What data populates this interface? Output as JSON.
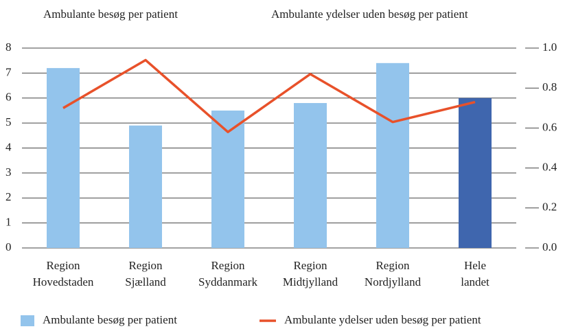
{
  "chart_data": {
    "type": "bar-line",
    "ylabel": "Ambulante besøg per patient",
    "y2label": "Ambulante ydelser uden besøg per patient",
    "categories": [
      [
        "Region",
        "Hovedstaden"
      ],
      [
        "Region",
        "Sjælland"
      ],
      [
        "Region",
        "Syddanmark"
      ],
      [
        "Region",
        "Midtjylland"
      ],
      [
        "Region",
        "Nordjylland"
      ],
      [
        "Hele",
        "landet"
      ]
    ],
    "series": [
      {
        "name": "Ambulante besøg per patient",
        "type": "bar",
        "color": "#93c4ec",
        "colors": [
          "#93c4ec",
          "#93c4ec",
          "#93c4ec",
          "#93c4ec",
          "#93c4ec",
          "#3f66ae"
        ],
        "values": [
          7.2,
          4.9,
          5.5,
          5.8,
          7.4,
          6.0
        ]
      },
      {
        "name": "Ambulante ydelser uden besøg per patient",
        "type": "line",
        "axis": "y2",
        "color": "#e8512a",
        "values": [
          0.7,
          0.94,
          0.58,
          0.87,
          0.63,
          0.73
        ]
      }
    ],
    "ylim": [
      0,
      8
    ],
    "yticks": [
      0,
      1,
      2,
      3,
      4,
      5,
      6,
      7,
      8
    ],
    "y2lim": [
      0,
      1
    ],
    "y2ticks": [
      {
        "value": 0,
        "label": "0.0"
      },
      0.2,
      0.4,
      0.6,
      0.8,
      {
        "value": 1,
        "label": "1.0"
      }
    ],
    "grid": true,
    "legend": "bottom"
  }
}
